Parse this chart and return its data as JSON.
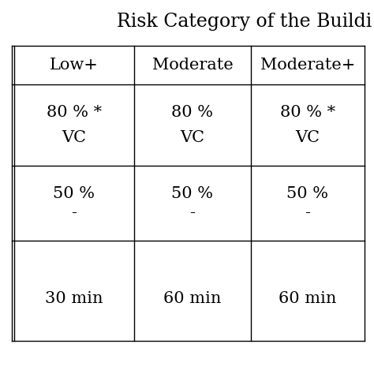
{
  "title": "Risk Category of the Buildi",
  "title_fontsize": 17,
  "col_labels": [
    "Low+",
    "Moderate",
    "Moderate+"
  ],
  "row1_lines": [
    [
      "80 % *",
      "VC"
    ],
    [
      "80 %",
      "VC"
    ],
    [
      "80 % *",
      "VC"
    ]
  ],
  "row2_lines": [
    [
      "50 %",
      "-"
    ],
    [
      "50 %",
      "-"
    ],
    [
      "50 %",
      "-"
    ]
  ],
  "row3_cells": [
    "30 min",
    "60 min",
    "60 min"
  ],
  "cell_fontsize": 15,
  "header_fontsize": 15,
  "background_color": "#ffffff",
  "line_color": "#000000",
  "text_color": "#000000",
  "fig_width": 4.74,
  "fig_height": 4.74,
  "dpi": 100
}
